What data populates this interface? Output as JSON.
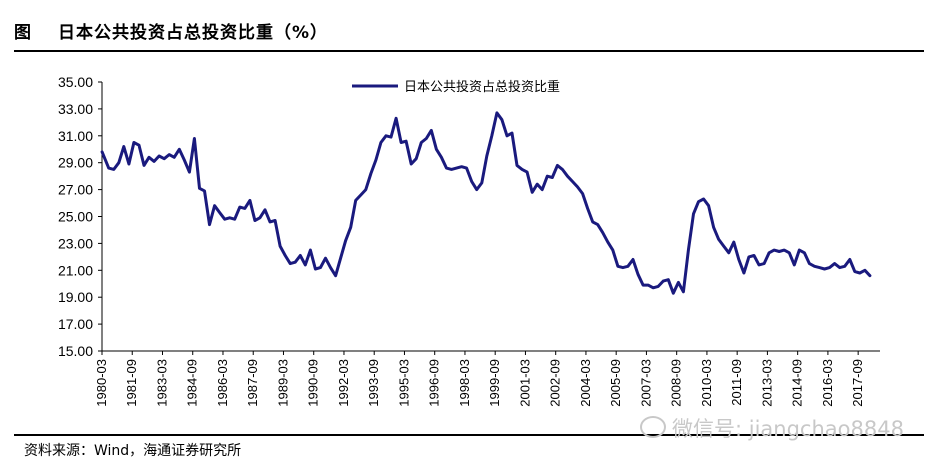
{
  "figure": {
    "label": "图",
    "title": "日本公共投资占总投资比重（%）",
    "source": "资料来源：Wind，海通证券研究所",
    "watermark": "微信号: jiangchao8848"
  },
  "colors": {
    "line": "#1a1a7e",
    "axis": "#000000"
  },
  "chart_data": {
    "type": "line",
    "title": "日本公共投资占总投资比重（%）",
    "xlabel": "",
    "ylabel": "",
    "ylim": [
      15,
      35
    ],
    "y_ticks": [
      "15.00",
      "17.00",
      "19.00",
      "21.00",
      "23.00",
      "25.00",
      "27.00",
      "29.00",
      "31.00",
      "33.00",
      "35.00"
    ],
    "x_start": 1980.167,
    "x_end": 2018.75,
    "x_tick_labels": [
      "1980-03",
      "1981-09",
      "1983-03",
      "1984-09",
      "1986-03",
      "1987-09",
      "1989-03",
      "1990-09",
      "1992-03",
      "1993-09",
      "1995-03",
      "1996-09",
      "1998-03",
      "1999-09",
      "2001-03",
      "2002-09",
      "2004-03",
      "2005-09",
      "2007-03",
      "2008-09",
      "2010-03",
      "2011-09",
      "2013-03",
      "2014-09",
      "2016-03",
      "2017-09"
    ],
    "legend": "日本公共投资占总投资比重",
    "series": [
      {
        "name": "日本公共投资占总投资比重",
        "points": [
          [
            1980.17,
            29.8
          ],
          [
            1980.5,
            28.6
          ],
          [
            1980.75,
            28.5
          ],
          [
            1981.0,
            29.0
          ],
          [
            1981.25,
            30.2
          ],
          [
            1981.5,
            28.9
          ],
          [
            1981.75,
            30.5
          ],
          [
            1982.0,
            30.3
          ],
          [
            1982.25,
            28.8
          ],
          [
            1982.5,
            29.4
          ],
          [
            1982.75,
            29.1
          ],
          [
            1983.0,
            29.5
          ],
          [
            1983.25,
            29.3
          ],
          [
            1983.5,
            29.6
          ],
          [
            1983.75,
            29.4
          ],
          [
            1984.0,
            30.0
          ],
          [
            1984.25,
            29.2
          ],
          [
            1984.5,
            28.3
          ],
          [
            1984.75,
            30.8
          ],
          [
            1985.0,
            27.1
          ],
          [
            1985.25,
            26.9
          ],
          [
            1985.5,
            24.4
          ],
          [
            1985.75,
            25.8
          ],
          [
            1986.0,
            25.3
          ],
          [
            1986.25,
            24.8
          ],
          [
            1986.5,
            24.9
          ],
          [
            1986.75,
            24.8
          ],
          [
            1987.0,
            25.7
          ],
          [
            1987.25,
            25.6
          ],
          [
            1987.5,
            26.2
          ],
          [
            1987.75,
            24.7
          ],
          [
            1988.0,
            24.9
          ],
          [
            1988.25,
            25.5
          ],
          [
            1988.5,
            24.6
          ],
          [
            1988.75,
            24.7
          ],
          [
            1989.0,
            22.8
          ],
          [
            1989.25,
            22.1
          ],
          [
            1989.5,
            21.5
          ],
          [
            1989.75,
            21.6
          ],
          [
            1990.0,
            22.1
          ],
          [
            1990.25,
            21.4
          ],
          [
            1990.5,
            22.5
          ],
          [
            1990.75,
            21.1
          ],
          [
            1991.0,
            21.2
          ],
          [
            1991.25,
            21.9
          ],
          [
            1991.5,
            21.2
          ],
          [
            1991.75,
            20.6
          ],
          [
            1992.0,
            21.9
          ],
          [
            1992.25,
            23.2
          ],
          [
            1992.5,
            24.2
          ],
          [
            1992.75,
            26.2
          ],
          [
            1993.0,
            26.6
          ],
          [
            1993.25,
            27.0
          ],
          [
            1993.5,
            28.2
          ],
          [
            1993.75,
            29.2
          ],
          [
            1994.0,
            30.5
          ],
          [
            1994.25,
            31.0
          ],
          [
            1994.5,
            30.9
          ],
          [
            1994.75,
            32.3
          ],
          [
            1995.0,
            30.5
          ],
          [
            1995.25,
            30.6
          ],
          [
            1995.5,
            28.9
          ],
          [
            1995.75,
            29.3
          ],
          [
            1996.0,
            30.5
          ],
          [
            1996.25,
            30.8
          ],
          [
            1996.5,
            31.4
          ],
          [
            1996.75,
            30.0
          ],
          [
            1997.0,
            29.4
          ],
          [
            1997.25,
            28.6
          ],
          [
            1997.5,
            28.5
          ],
          [
            1997.75,
            28.6
          ],
          [
            1998.0,
            28.7
          ],
          [
            1998.25,
            28.6
          ],
          [
            1998.5,
            27.6
          ],
          [
            1998.75,
            27.0
          ],
          [
            1999.0,
            27.5
          ],
          [
            1999.25,
            29.5
          ],
          [
            1999.5,
            31.0
          ],
          [
            1999.75,
            32.7
          ],
          [
            2000.0,
            32.2
          ],
          [
            2000.25,
            31.0
          ],
          [
            2000.5,
            31.2
          ],
          [
            2000.75,
            28.8
          ],
          [
            2001.0,
            28.5
          ],
          [
            2001.25,
            28.3
          ],
          [
            2001.5,
            26.8
          ],
          [
            2001.75,
            27.4
          ],
          [
            2002.0,
            27.0
          ],
          [
            2002.25,
            28.0
          ],
          [
            2002.5,
            27.9
          ],
          [
            2002.75,
            28.8
          ],
          [
            2003.0,
            28.5
          ],
          [
            2003.25,
            28.0
          ],
          [
            2003.5,
            27.6
          ],
          [
            2003.75,
            27.2
          ],
          [
            2004.0,
            26.7
          ],
          [
            2004.25,
            25.6
          ],
          [
            2004.5,
            24.6
          ],
          [
            2004.75,
            24.4
          ],
          [
            2005.0,
            23.8
          ],
          [
            2005.25,
            23.1
          ],
          [
            2005.5,
            22.5
          ],
          [
            2005.75,
            21.3
          ],
          [
            2006.0,
            21.2
          ],
          [
            2006.25,
            21.3
          ],
          [
            2006.5,
            21.8
          ],
          [
            2006.75,
            20.7
          ],
          [
            2007.0,
            19.9
          ],
          [
            2007.25,
            19.9
          ],
          [
            2007.5,
            19.7
          ],
          [
            2007.75,
            19.8
          ],
          [
            2008.0,
            20.2
          ],
          [
            2008.25,
            20.3
          ],
          [
            2008.5,
            19.3
          ],
          [
            2008.75,
            20.1
          ],
          [
            2009.0,
            19.4
          ],
          [
            2009.25,
            22.5
          ],
          [
            2009.5,
            25.2
          ],
          [
            2009.75,
            26.1
          ],
          [
            2010.0,
            26.3
          ],
          [
            2010.25,
            25.8
          ],
          [
            2010.5,
            24.2
          ],
          [
            2010.75,
            23.3
          ],
          [
            2011.0,
            22.8
          ],
          [
            2011.25,
            22.3
          ],
          [
            2011.5,
            23.1
          ],
          [
            2011.75,
            21.8
          ],
          [
            2012.0,
            20.8
          ],
          [
            2012.25,
            22.0
          ],
          [
            2012.5,
            22.1
          ],
          [
            2012.75,
            21.4
          ],
          [
            2013.0,
            21.5
          ],
          [
            2013.25,
            22.3
          ],
          [
            2013.5,
            22.5
          ],
          [
            2013.75,
            22.4
          ],
          [
            2014.0,
            22.5
          ],
          [
            2014.25,
            22.3
          ],
          [
            2014.5,
            21.4
          ],
          [
            2014.75,
            22.5
          ],
          [
            2015.0,
            22.3
          ],
          [
            2015.25,
            21.5
          ],
          [
            2015.5,
            21.3
          ],
          [
            2015.75,
            21.2
          ],
          [
            2016.0,
            21.1
          ],
          [
            2016.25,
            21.2
          ],
          [
            2016.5,
            21.5
          ],
          [
            2016.75,
            21.2
          ],
          [
            2017.0,
            21.3
          ],
          [
            2017.25,
            21.8
          ],
          [
            2017.5,
            20.9
          ],
          [
            2017.75,
            20.8
          ],
          [
            2018.0,
            21.0
          ],
          [
            2018.25,
            20.6
          ]
        ]
      }
    ]
  }
}
